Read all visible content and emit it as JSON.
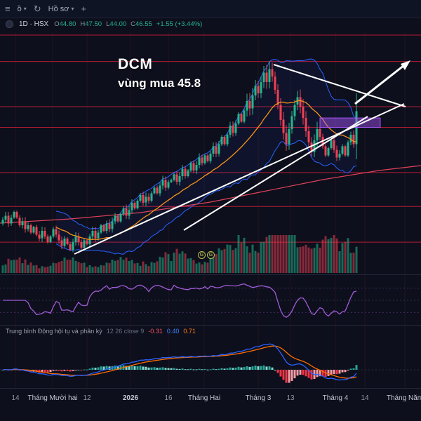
{
  "topbar": {
    "left_label": "ồ",
    "profile_label": "Hồ sơ"
  },
  "symbol_bar": {
    "interval_exchange": "1D · HSX",
    "ohlc": {
      "o_label": "O",
      "o": "44.80",
      "h_label": "H",
      "h": "47.50",
      "l_label": "L",
      "l": "44.00",
      "c_label": "C",
      "c": "46.55",
      "change": "+1.55 (+3.44%)"
    }
  },
  "annotation": {
    "ticker": "DCM",
    "note": "vùng mua 45.8"
  },
  "event_badges": [
    "G",
    "G"
  ],
  "macd_legend": {
    "name": "Trung bình Động hội tụ và phân kỳ",
    "params": "12 26 close 9",
    "hist": "-0.31",
    "macd": "0.40",
    "signal": "0.71"
  },
  "time_axis": [
    "14",
    "Tháng Mười hai",
    "12",
    "2026",
    "16",
    "Tháng Hai",
    "Tháng 3",
    "13",
    "Tháng 4",
    "14",
    "Tháng Năm"
  ],
  "colors": {
    "background": "#0d0f1c",
    "up": "#25b68c",
    "down": "#ef4054",
    "bollinger": "#2962ff",
    "basis": "#f7931a",
    "slow_ma": "#e0425a",
    "oscillator": "#a05cd6",
    "macd_line": "#2962ff",
    "signal_line": "#ff6d00",
    "hist_pos": "#26a69a",
    "hist_pos_weak": "#86d8cc",
    "hist_neg": "#f23645",
    "hist_neg_weak": "#f79ba3",
    "level": "#e9203c",
    "trend": "#ffffff",
    "zone": "#a855f7",
    "axis_text": "#8f95a3",
    "axis_text_bright": "#c5c9d3"
  },
  "chart_data": {
    "type": "candlestick",
    "title": "DCM 1D · HSX with Bollinger Bands, volume, oscillator and MACD(12,26,9)",
    "last_bar": {
      "open": 44.8,
      "high": 47.5,
      "low": 44.0,
      "close": 46.55,
      "change": 1.55,
      "change_pct": 3.44
    },
    "closes": [
      40.8,
      41.0,
      40.6,
      40.9,
      41.2,
      40.9,
      40.5,
      40.7,
      40.3,
      40.5,
      40.1,
      40.4,
      40.0,
      39.8,
      40.2,
      39.9,
      39.6,
      39.9,
      40.3,
      40.0,
      39.7,
      39.4,
      39.8,
      39.5,
      39.2,
      39.6,
      39.9,
      39.6,
      39.3,
      39.7,
      39.5,
      39.9,
      40.2,
      39.8,
      40.1,
      40.5,
      40.2,
      40.6,
      40.3,
      40.7,
      41.0,
      40.7,
      41.1,
      41.4,
      41.0,
      41.3,
      41.7,
      41.4,
      41.8,
      42.1,
      41.7,
      42.0,
      41.8,
      42.2,
      42.5,
      42.2,
      42.6,
      42.9,
      42.5,
      42.8,
      42.9,
      43.2,
      42.8,
      43.1,
      43.5,
      43.1,
      43.4,
      43.8,
      43.4,
      43.7,
      44.1,
      43.8,
      44.2,
      43.9,
      44.3,
      44.7,
      44.3,
      44.8,
      45.2,
      44.8,
      45.3,
      45.8,
      45.4,
      45.9,
      46.4,
      46.0,
      46.6,
      47.1,
      46.7,
      47.4,
      47.9,
      47.5,
      48.1,
      48.6,
      48.1,
      48.8,
      48.4,
      47.7,
      46.9,
      46.1,
      45.4,
      44.8,
      45.6,
      46.3,
      46.9,
      47.3,
      46.8,
      46.2,
      45.5,
      44.9,
      44.4,
      45.0,
      45.6,
      45.2,
      44.7,
      44.2,
      44.6,
      45.0,
      44.5,
      44.1,
      44.3,
      44.7,
      44.2,
      44.9,
      45.3,
      44.8,
      46.55
    ],
    "price_range_est": [
      38.0,
      50.6
    ],
    "buy_zone": {
      "price": 45.8,
      "band": [
        45.7,
        46.2
      ]
    },
    "level_lines": [
      50.6,
      49.2,
      46.8,
      45.7,
      43.3,
      41.5,
      39.6
    ],
    "indicators": [
      "Bollinger Bands (20,2)",
      "Volume",
      "Oscillator",
      "MACD 12 26 close 9"
    ],
    "macd_values": {
      "histogram": -0.31,
      "macd": 0.4,
      "signal": 0.71
    },
    "x_axis_labels": [
      "14",
      "Tháng Mười hai",
      "12",
      "2026",
      "16",
      "Tháng Hai",
      "Tháng 3",
      "13",
      "Tháng 4",
      "14",
      "Tháng Năm"
    ]
  }
}
